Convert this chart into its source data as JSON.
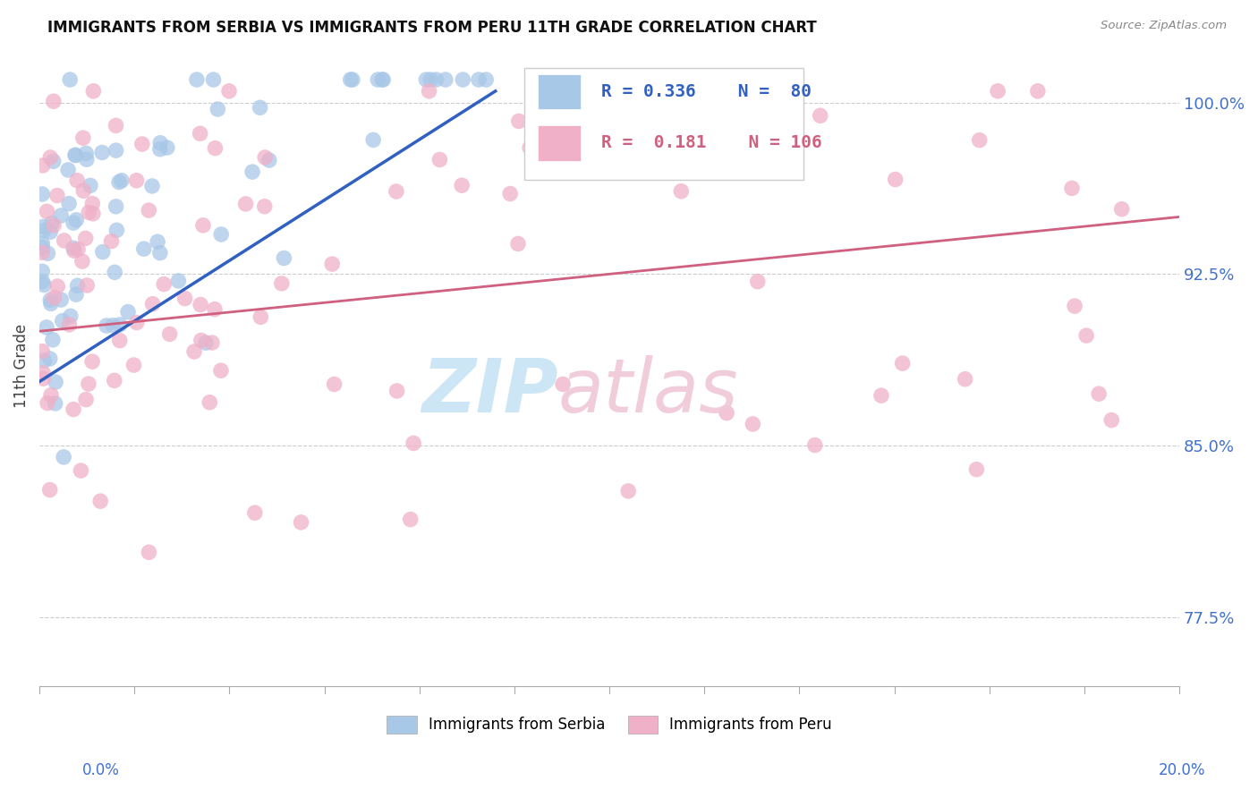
{
  "title": "IMMIGRANTS FROM SERBIA VS IMMIGRANTS FROM PERU 11TH GRADE CORRELATION CHART",
  "source": "Source: ZipAtlas.com",
  "ylabel": "11th Grade",
  "y_ticks": [
    77.5,
    85.0,
    92.5,
    100.0
  ],
  "x_min": 0.0,
  "x_max": 0.2,
  "y_min": 0.745,
  "y_max": 1.025,
  "serbia_color": "#a8c8e8",
  "peru_color": "#f0b0c8",
  "serbia_line_color": "#3060c0",
  "peru_line_color": "#d06080",
  "tick_color": "#4070d0",
  "serbia_R": 0.336,
  "serbia_N": 80,
  "peru_R": 0.181,
  "peru_N": 106,
  "serbia_line_x0": 0.0,
  "serbia_line_x1": 0.08,
  "serbia_line_y0": 0.878,
  "serbia_line_y1": 1.005,
  "peru_line_x0": 0.0,
  "peru_line_x1": 0.2,
  "peru_line_y0": 0.9,
  "peru_line_y1": 0.95,
  "watermark_zip_color": "#c8e4f4",
  "watermark_atlas_color": "#f0c8d8"
}
